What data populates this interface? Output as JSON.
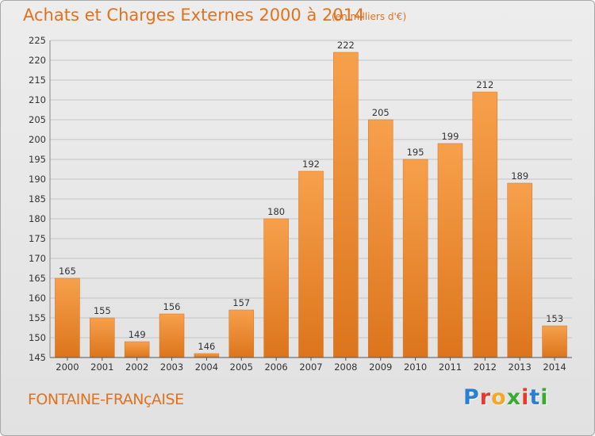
{
  "chart_data": {
    "type": "bar",
    "title": "Achats et Charges Externes 2000 à 2014",
    "subtitle": "(en milliers d'€)",
    "categories": [
      "2000",
      "2001",
      "2002",
      "2003",
      "2004",
      "2005",
      "2006",
      "2007",
      "2008",
      "2009",
      "2010",
      "2011",
      "2012",
      "2013",
      "2014"
    ],
    "values": [
      165,
      155,
      149,
      156,
      146,
      157,
      180,
      192,
      222,
      205,
      195,
      199,
      212,
      189,
      153
    ],
    "ylim": [
      145,
      225
    ],
    "yticks": [
      145,
      150,
      155,
      160,
      165,
      170,
      175,
      180,
      185,
      190,
      195,
      200,
      205,
      210,
      215,
      220,
      225
    ],
    "xlabel": "",
    "ylabel": "",
    "grid": true,
    "bar_color": "#f0922e",
    "bar_color_dark": "#d9701a"
  },
  "place_name": "FONTAINE-FRANçAISE",
  "logo": {
    "letters": [
      "P",
      "r",
      "o",
      "x",
      "i",
      "t",
      "i"
    ],
    "colors": [
      "#2b7fd1",
      "#e8392c",
      "#f5a623",
      "#3aaa35",
      "#e8392c",
      "#2b7fd1",
      "#3aaa35"
    ]
  }
}
